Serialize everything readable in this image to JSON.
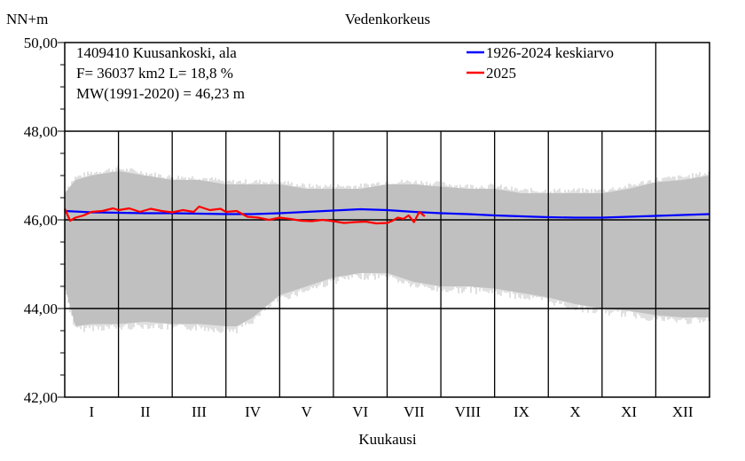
{
  "chart_data": {
    "type": "line",
    "title": "Vedenkorkeus",
    "ylabel": "NN+m",
    "xlabel": "Kuukausi",
    "ylim": [
      42,
      50
    ],
    "yticks": [
      42,
      44,
      46,
      48,
      50
    ],
    "ytick_labels": [
      "42,00",
      "44,00",
      "46,00",
      "48,00",
      "50,00"
    ],
    "months": [
      "I",
      "II",
      "III",
      "IV",
      "V",
      "VI",
      "VII",
      "VIII",
      "IX",
      "X",
      "XI",
      "XII"
    ],
    "info_lines": [
      "1409410 Kuusankoski, ala",
      "F=  36037 km2 L=  18,8 %",
      "MW(1991-2020) = 46,23 m"
    ],
    "grid": true,
    "legend_position": "top-right",
    "colors": {
      "background": "#ffffff",
      "range_band": "#c0c0c0",
      "axis": "#000000",
      "mean_line": "#0000ff",
      "year_line": "#ff0000"
    },
    "range_band": {
      "name": "",
      "x": [
        0,
        0.2,
        0.5,
        1,
        1.5,
        2,
        2.5,
        3,
        3.2,
        3.5,
        4,
        4.5,
        5,
        5.5,
        6,
        6.5,
        7,
        7.5,
        8,
        8.5,
        9,
        9.5,
        10,
        10.5,
        11,
        11.5,
        12
      ],
      "upper": [
        46.6,
        46.9,
        47.0,
        47.1,
        47.0,
        46.9,
        46.9,
        46.8,
        46.8,
        46.8,
        46.8,
        46.7,
        46.7,
        46.7,
        46.8,
        46.8,
        46.75,
        46.7,
        46.7,
        46.6,
        46.6,
        46.6,
        46.6,
        46.7,
        46.85,
        46.9,
        47.0
      ],
      "lower": [
        44.5,
        43.6,
        43.65,
        43.65,
        43.7,
        43.65,
        43.65,
        43.6,
        43.6,
        43.8,
        44.3,
        44.5,
        44.7,
        44.8,
        44.8,
        44.6,
        44.5,
        44.5,
        44.45,
        44.35,
        44.25,
        44.1,
        44.0,
        43.95,
        43.85,
        43.8,
        43.8
      ]
    },
    "series": [
      {
        "name": "1926-2024 keskiarvo",
        "color": "#0000ff",
        "x": [
          0,
          0.5,
          1,
          1.5,
          2,
          2.5,
          3,
          3.5,
          4,
          4.5,
          5,
          5.5,
          6,
          6.5,
          7,
          7.5,
          8,
          8.5,
          9,
          9.5,
          10,
          10.5,
          11,
          11.5,
          12
        ],
        "values": [
          46.2,
          46.17,
          46.16,
          46.15,
          46.15,
          46.14,
          46.13,
          46.13,
          46.15,
          46.18,
          46.21,
          46.24,
          46.22,
          46.18,
          46.15,
          46.13,
          46.1,
          46.08,
          46.06,
          46.05,
          46.05,
          46.07,
          46.09,
          46.11,
          46.13
        ]
      },
      {
        "name": "2025",
        "color": "#ff0000",
        "x": [
          0,
          0.1,
          0.2,
          0.35,
          0.5,
          0.7,
          0.9,
          1.0,
          1.2,
          1.4,
          1.6,
          1.8,
          2.0,
          2.2,
          2.4,
          2.5,
          2.7,
          2.9,
          3.0,
          3.2,
          3.4,
          3.6,
          3.8,
          4.0,
          4.2,
          4.4,
          4.6,
          4.8,
          5.0,
          5.2,
          5.4,
          5.6,
          5.8,
          6.0,
          6.1,
          6.2,
          6.3,
          6.4,
          6.5,
          6.6,
          6.7
        ],
        "values": [
          46.25,
          45.98,
          46.05,
          46.1,
          46.18,
          46.2,
          46.26,
          46.22,
          46.26,
          46.18,
          46.25,
          46.2,
          46.17,
          46.22,
          46.18,
          46.3,
          46.22,
          46.25,
          46.18,
          46.2,
          46.07,
          46.05,
          46.0,
          46.05,
          46.02,
          45.98,
          45.97,
          46.0,
          45.97,
          45.93,
          45.95,
          45.96,
          45.92,
          45.93,
          45.98,
          46.05,
          46.02,
          46.1,
          45.95,
          46.18,
          46.08
        ]
      }
    ]
  }
}
